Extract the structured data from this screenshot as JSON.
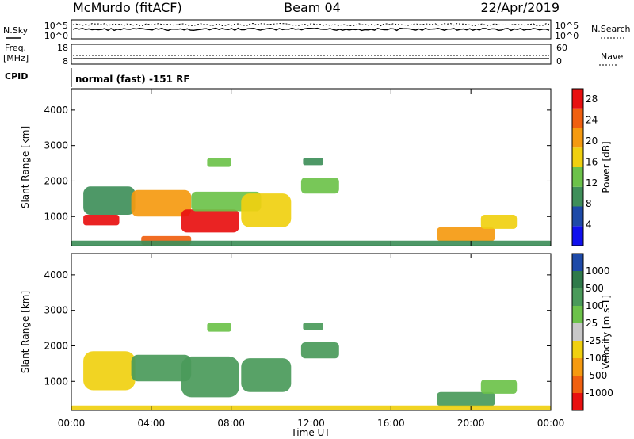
{
  "header": {
    "station": "McMurdo (fitACF)",
    "beam": "Beam 04",
    "date": "22/Apr/2019",
    "mode": "normal (fast) -151 RF"
  },
  "left_labels": {
    "nsky": "N.Sky",
    "freq": "Freq.",
    "freq_unit": "[MHz]",
    "cpid": "CPID"
  },
  "right_labels": {
    "nsearch": "N.Search",
    "nave": "Nave"
  },
  "noise_panel": {
    "tick_top": "10^5",
    "tick_bottom": "10^0"
  },
  "freq_panel": {
    "left_ticks": [
      "18",
      "8"
    ],
    "right_ticks": [
      "60",
      "0"
    ]
  },
  "chart_data": [
    {
      "type": "heatmap",
      "title": "Power",
      "xlabel": "",
      "ylabel": "Slant Range [km]",
      "x": [
        "00:00",
        "04:00",
        "08:00",
        "12:00",
        "16:00",
        "20:00",
        "00:00"
      ],
      "x_hours": [
        0,
        4,
        8,
        12,
        16,
        20,
        24
      ],
      "xlim_hours": [
        0,
        24
      ],
      "yticks": [
        1000,
        2000,
        3000,
        4000
      ],
      "ylim": [
        180,
        4600
      ],
      "colorbar": {
        "label": "Power [dB]",
        "ticks": [
          "4",
          "8",
          "12",
          "16",
          "20",
          "24",
          "28"
        ],
        "range": [
          0,
          30
        ]
      },
      "colors": [
        "#1010ee",
        "#1e4aa8",
        "#3f8f5a",
        "#6cc24a",
        "#f0d010",
        "#f59a10",
        "#f06010",
        "#e81010"
      ],
      "regions": [
        {
          "t0": 0.6,
          "t1": 3.2,
          "r0": 1050,
          "r1": 1850,
          "value": 10
        },
        {
          "t0": 0.6,
          "t1": 2.4,
          "r0": 750,
          "r1": 1050,
          "value": 27
        },
        {
          "t0": 3.0,
          "t1": 6.0,
          "r0": 1000,
          "r1": 1750,
          "value": 19
        },
        {
          "t0": 5.5,
          "t1": 8.4,
          "r0": 550,
          "r1": 1200,
          "value": 29
        },
        {
          "t0": 6.0,
          "t1": 9.5,
          "r0": 1150,
          "r1": 1700,
          "value": 14
        },
        {
          "t0": 8.5,
          "t1": 11.0,
          "r0": 700,
          "r1": 1650,
          "value": 17
        },
        {
          "t0": 11.5,
          "t1": 13.4,
          "r0": 1650,
          "r1": 2100,
          "value": 12
        },
        {
          "t0": 11.6,
          "t1": 12.6,
          "r0": 2450,
          "r1": 2650,
          "value": 9
        },
        {
          "t0": 6.8,
          "t1": 8.0,
          "r0": 2400,
          "r1": 2650,
          "value": 13
        },
        {
          "t0": 18.3,
          "t1": 21.2,
          "r0": 300,
          "r1": 700,
          "value": 21
        },
        {
          "t0": 20.5,
          "t1": 22.3,
          "r0": 650,
          "r1": 1050,
          "value": 15
        },
        {
          "t0": 3.5,
          "t1": 6.0,
          "r0": 200,
          "r1": 450,
          "value": 24
        },
        {
          "t0": 0.0,
          "t1": 24.0,
          "r0": 180,
          "r1": 320,
          "value": 9
        }
      ]
    },
    {
      "type": "heatmap",
      "title": "Velocity",
      "xlabel": "Time UT",
      "ylabel": "Slant Range [km]",
      "x": [
        "00:00",
        "04:00",
        "08:00",
        "12:00",
        "16:00",
        "20:00",
        "00:00"
      ],
      "x_hours": [
        0,
        4,
        8,
        12,
        16,
        20,
        24
      ],
      "xlim_hours": [
        0,
        24
      ],
      "yticks": [
        1000,
        2000,
        3000,
        4000
      ],
      "ylim": [
        180,
        4600
      ],
      "colorbar": {
        "label": "Velocity [m s-1]",
        "ticks": [
          "1000",
          "500",
          "100",
          "25",
          "-25",
          "-100",
          "-500",
          "-1000"
        ],
        "bins": [
          1000,
          500,
          100,
          25,
          -25,
          -100,
          -500,
          -1000
        ]
      },
      "colors": [
        "#1e4aa8",
        "#2f7a4a",
        "#4a9a5a",
        "#6cc24a",
        "#c8c8c8",
        "#f0d010",
        "#f59a10",
        "#f06010",
        "#e81010"
      ],
      "regions": [
        {
          "t0": 0.6,
          "t1": 3.2,
          "r0": 750,
          "r1": 1850,
          "value": -100
        },
        {
          "t0": 3.0,
          "t1": 6.0,
          "r0": 1000,
          "r1": 1750,
          "value": 120
        },
        {
          "t0": 5.5,
          "t1": 8.4,
          "r0": 550,
          "r1": 1700,
          "value": 150
        },
        {
          "t0": 8.5,
          "t1": 11.0,
          "r0": 700,
          "r1": 1650,
          "value": 130
        },
        {
          "t0": 11.5,
          "t1": 13.4,
          "r0": 1650,
          "r1": 2100,
          "value": 140
        },
        {
          "t0": 11.6,
          "t1": 12.6,
          "r0": 2450,
          "r1": 2650,
          "value": 300
        },
        {
          "t0": 6.8,
          "t1": 8.0,
          "r0": 2400,
          "r1": 2650,
          "value": 60
        },
        {
          "t0": 18.3,
          "t1": 21.2,
          "r0": 300,
          "r1": 700,
          "value": 110
        },
        {
          "t0": 20.5,
          "t1": 22.3,
          "r0": 650,
          "r1": 1050,
          "value": 90
        },
        {
          "t0": 0.0,
          "t1": 24.0,
          "r0": 180,
          "r1": 320,
          "value": -60
        }
      ]
    }
  ]
}
